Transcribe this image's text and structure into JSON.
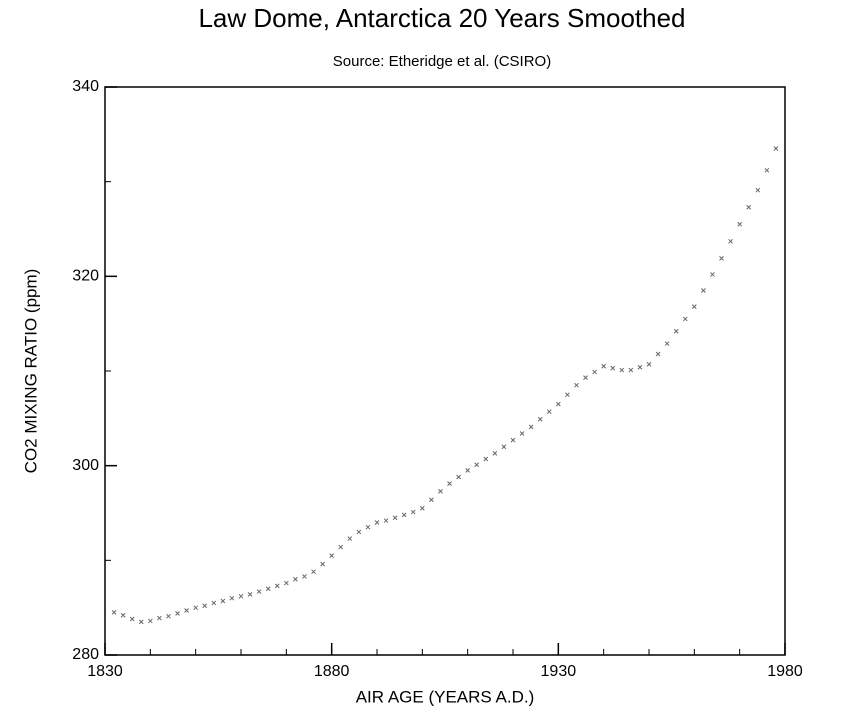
{
  "chart_data": {
    "type": "scatter",
    "title": "Law Dome, Antarctica 20 Years Smoothed",
    "subtitle": "Source: Etheridge et al. (CSIRO)",
    "x_label": "AIR AGE  (YEARS A.D.)",
    "y_label": "CO2 MIXING RATIO  (ppm)",
    "xlim": [
      1830,
      1980
    ],
    "xticks": [
      1830,
      1880,
      1930,
      1980
    ],
    "xticks_minor": [
      1840,
      1850,
      1860,
      1870,
      1890,
      1900,
      1910,
      1920,
      1940,
      1950,
      1960,
      1970
    ],
    "ylim": [
      280,
      340
    ],
    "yticks": [
      280,
      300,
      320,
      340
    ],
    "yticks_minor": [
      290,
      310,
      330
    ],
    "grid": false,
    "series": [
      {
        "name": null,
        "color": "#666666",
        "x": [
          1832,
          1834,
          1836,
          1838,
          1840,
          1842,
          1844,
          1846,
          1848,
          1850,
          1852,
          1854,
          1856,
          1858,
          1860,
          1862,
          1864,
          1866,
          1868,
          1870,
          1872,
          1874,
          1876,
          1878,
          1880,
          1882,
          1884,
          1886,
          1888,
          1890,
          1892,
          1894,
          1896,
          1898,
          1900,
          1902,
          1904,
          1906,
          1908,
          1910,
          1912,
          1914,
          1916,
          1918,
          1920,
          1922,
          1924,
          1926,
          1928,
          1930,
          1932,
          1934,
          1936,
          1938,
          1940,
          1942,
          1944,
          1946,
          1948,
          1950,
          1952,
          1954,
          1956,
          1958,
          1960,
          1962,
          1964,
          1966,
          1968,
          1970,
          1972,
          1974,
          1976,
          1978
        ],
        "values": [
          284.5,
          284.2,
          283.8,
          283.5,
          283.6,
          283.9,
          284.1,
          284.4,
          284.7,
          285.0,
          285.2,
          285.5,
          285.7,
          286.0,
          286.2,
          286.4,
          286.7,
          287.0,
          287.3,
          287.6,
          288.0,
          288.3,
          288.8,
          289.6,
          290.5,
          291.4,
          292.3,
          293.0,
          293.5,
          294.0,
          294.2,
          294.5,
          294.8,
          295.1,
          295.5,
          296.4,
          297.3,
          298.1,
          298.8,
          299.5,
          300.1,
          300.7,
          301.3,
          302.0,
          302.7,
          303.4,
          304.1,
          304.9,
          305.7,
          306.5,
          307.5,
          308.5,
          309.3,
          309.9,
          310.5,
          310.3,
          310.1,
          310.1,
          310.4,
          310.7,
          311.8,
          312.9,
          314.2,
          315.5,
          316.8,
          318.5,
          320.2,
          321.9,
          323.7,
          325.5,
          327.3,
          329.1,
          331.2,
          333.5
        ]
      }
    ]
  }
}
